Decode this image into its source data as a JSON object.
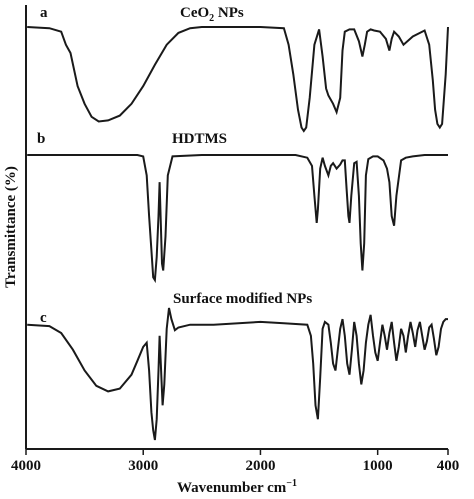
{
  "chart_data": {
    "type": "line",
    "xlabel": "Wavenumber cm",
    "xlabel_superscript": "−1",
    "ylabel": "Transmittance (%)",
    "xlim": [
      4000,
      400
    ],
    "x_ticks": [
      {
        "value": 4000,
        "label": "4000"
      },
      {
        "value": 3000,
        "label": "3000"
      },
      {
        "value": 2000,
        "label": "2000"
      },
      {
        "value": 1000,
        "label": "1000"
      },
      {
        "value": 400,
        "label": "400"
      }
    ],
    "grid": false,
    "legend": "none",
    "line_color": "#1a1a1a",
    "panels": [
      {
        "letter": "a",
        "title_parts": [
          "CeO",
          "2",
          " NPs"
        ],
        "series": {
          "x": [
            3990,
            3800,
            3700,
            3660,
            3620,
            3560,
            3500,
            3440,
            3380,
            3300,
            3200,
            3100,
            3000,
            2900,
            2800,
            2700,
            2600,
            2500,
            2000,
            1800,
            1760,
            1720,
            1680,
            1650,
            1630,
            1610,
            1580,
            1540,
            1500,
            1470,
            1440,
            1420,
            1380,
            1350,
            1320,
            1300,
            1280,
            1240,
            1200,
            1160,
            1130,
            1110,
            1090,
            1060,
            1030,
            980,
            930,
            900,
            880,
            860,
            820,
            780,
            700,
            600,
            560,
            530,
            510,
            490,
            470,
            450,
            420,
            400
          ],
          "y": [
            100,
            99,
            96,
            85,
            78,
            50,
            35,
            24,
            20,
            21,
            25,
            35,
            50,
            68,
            85,
            95,
            99,
            100,
            100,
            99,
            85,
            60,
            30,
            15,
            12,
            15,
            40,
            85,
            98,
            75,
            48,
            42,
            35,
            28,
            40,
            80,
            96,
            98,
            98,
            88,
            75,
            85,
            96,
            98,
            97,
            96,
            90,
            80,
            90,
            96,
            92,
            85,
            92,
            97,
            85,
            55,
            30,
            18,
            15,
            18,
            60,
            100
          ]
        }
      },
      {
        "letter": "b",
        "title": "HDTMS",
        "series": {
          "x": [
            3990,
            3500,
            3200,
            3050,
            3000,
            2970,
            2950,
            2930,
            2915,
            2900,
            2885,
            2870,
            2860,
            2850,
            2840,
            2830,
            2810,
            2790,
            2750,
            2500,
            2000,
            1700,
            1600,
            1560,
            1540,
            1520,
            1510,
            1490,
            1470,
            1450,
            1420,
            1400,
            1380,
            1350,
            1320,
            1300,
            1280,
            1265,
            1250,
            1240,
            1225,
            1200,
            1180,
            1160,
            1145,
            1130,
            1115,
            1100,
            1080,
            1040,
            1000,
            950,
            920,
            900,
            880,
            860,
            840,
            800,
            760,
            700,
            600,
            500,
            400
          ],
          "y": [
            100,
            100,
            100,
            100,
            99,
            85,
            55,
            30,
            10,
            8,
            25,
            55,
            80,
            50,
            20,
            15,
            40,
            85,
            99,
            100,
            100,
            100,
            98,
            92,
            70,
            50,
            60,
            90,
            98,
            92,
            85,
            92,
            94,
            90,
            93,
            96,
            96,
            75,
            55,
            50,
            70,
            94,
            95,
            70,
            35,
            15,
            35,
            85,
            97,
            99,
            99,
            96,
            90,
            80,
            55,
            48,
            70,
            96,
            98,
            99,
            100,
            100,
            100
          ]
        }
      },
      {
        "letter": "c",
        "title": "Surface modified NPs",
        "series": {
          "x": [
            3990,
            3800,
            3700,
            3600,
            3500,
            3400,
            3300,
            3200,
            3100,
            3050,
            3000,
            2970,
            2950,
            2930,
            2915,
            2900,
            2885,
            2870,
            2860,
            2850,
            2835,
            2820,
            2800,
            2780,
            2760,
            2730,
            2700,
            2600,
            2400,
            2000,
            1800,
            1600,
            1570,
            1550,
            1530,
            1510,
            1490,
            1470,
            1450,
            1420,
            1400,
            1380,
            1360,
            1340,
            1320,
            1300,
            1280,
            1260,
            1240,
            1220,
            1200,
            1180,
            1160,
            1140,
            1120,
            1100,
            1080,
            1060,
            1040,
            1020,
            1000,
            980,
            960,
            940,
            920,
            900,
            880,
            860,
            840,
            820,
            800,
            780,
            760,
            740,
            720,
            700,
            680,
            660,
            640,
            620,
            600,
            580,
            560,
            540,
            520,
            500,
            480,
            460,
            440,
            420,
            400
          ],
          "y": [
            88,
            87,
            82,
            70,
            55,
            44,
            40,
            42,
            52,
            62,
            72,
            75,
            55,
            25,
            12,
            5,
            20,
            55,
            80,
            60,
            30,
            45,
            85,
            100,
            92,
            84,
            86,
            88,
            88,
            90,
            89,
            88,
            80,
            60,
            30,
            20,
            50,
            85,
            90,
            88,
            75,
            60,
            55,
            70,
            85,
            92,
            80,
            60,
            52,
            70,
            90,
            80,
            60,
            45,
            55,
            75,
            88,
            95,
            80,
            68,
            62,
            75,
            88,
            80,
            70,
            82,
            90,
            75,
            62,
            72,
            85,
            80,
            68,
            80,
            90,
            82,
            72,
            84,
            90,
            80,
            70,
            76,
            86,
            88,
            78,
            66,
            72,
            85,
            90,
            92,
            92
          ]
        }
      }
    ]
  }
}
